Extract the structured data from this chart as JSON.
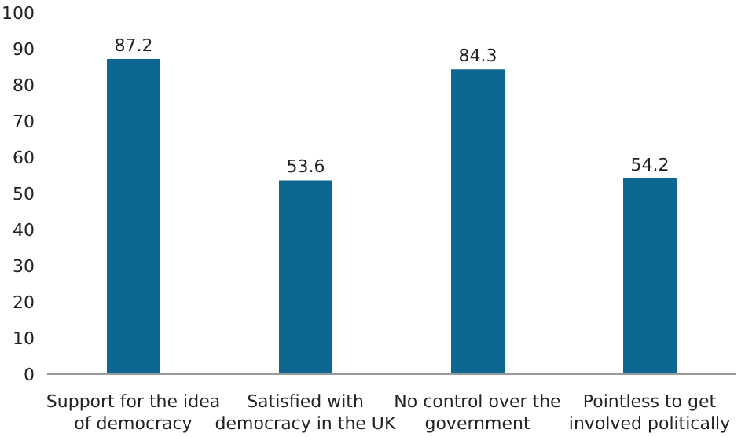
{
  "chart_data": {
    "type": "bar",
    "categories": [
      "Support for the idea of democracy",
      "Satisfied with democracy in the UK",
      "No control over the government",
      "Pointless to get involved politically"
    ],
    "values": [
      87.2,
      53.6,
      84.3,
      54.2
    ],
    "color": "#0e6790",
    "ylim": [
      0,
      100
    ],
    "yticks": [
      0,
      10,
      20,
      30,
      40,
      50,
      60,
      70,
      80,
      90,
      100
    ],
    "data_labels": true,
    "grid": false,
    "legend": false
  }
}
